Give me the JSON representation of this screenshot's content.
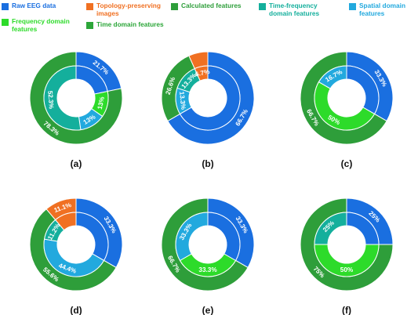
{
  "legend": [
    {
      "key": "raw",
      "label": "Raw EEG data",
      "color": "#1A6FE0"
    },
    {
      "key": "topo",
      "label": "Topology-preserving\nimages",
      "color": "#F07022"
    },
    {
      "key": "calc",
      "label": "Calculated features",
      "color": "#2E9E3A"
    },
    {
      "key": "tf",
      "label": "Time-frequency\ndomain features",
      "color": "#14AF9C"
    },
    {
      "key": "spatial",
      "label": "Spatial domain features",
      "color": "#22A9DE"
    },
    {
      "key": "freq",
      "label": "Frequency domain\nfeatures",
      "color": "#2DDB2A"
    },
    {
      "key": "time",
      "label": "Time domain features",
      "color": "#2CA639"
    }
  ],
  "chart_data": [
    {
      "type": "pie",
      "subtype": "nested-donut",
      "panel": "(a)",
      "outer": [
        {
          "category": "raw",
          "value": 21.7,
          "label": "21.7%"
        },
        {
          "category": "calc",
          "value": 78.3,
          "label": "78.3%"
        }
      ],
      "inner": [
        {
          "category": "raw",
          "value": 21.7,
          "label": ""
        },
        {
          "category": "freq",
          "value": 13.0,
          "label": "13%"
        },
        {
          "category": "spatial",
          "value": 13.0,
          "label": "13%"
        },
        {
          "category": "tf",
          "value": 52.3,
          "label": "52.3%"
        }
      ]
    },
    {
      "type": "pie",
      "subtype": "nested-donut",
      "panel": "(b)",
      "outer": [
        {
          "category": "raw",
          "value": 66.7,
          "label": "66.7%"
        },
        {
          "category": "calc",
          "value": 26.6,
          "label": "26.6%"
        },
        {
          "category": "topo",
          "value": 6.7,
          "label": ""
        }
      ],
      "inner": [
        {
          "category": "raw",
          "value": 66.7,
          "label": ""
        },
        {
          "category": "spatial",
          "value": 13.3,
          "label": "13.3%"
        },
        {
          "category": "tf",
          "value": 13.3,
          "label": "13.3%"
        },
        {
          "category": "topo",
          "value": 6.7,
          "label": "6.7%"
        }
      ]
    },
    {
      "type": "pie",
      "subtype": "nested-donut",
      "panel": "(c)",
      "outer": [
        {
          "category": "raw",
          "value": 33.3,
          "label": "33.3%"
        },
        {
          "category": "calc",
          "value": 66.7,
          "label": "66.7%"
        }
      ],
      "inner": [
        {
          "category": "raw",
          "value": 33.3,
          "label": ""
        },
        {
          "category": "freq",
          "value": 50.0,
          "label": "50%"
        },
        {
          "category": "spatial",
          "value": 16.7,
          "label": "16.7%"
        }
      ]
    },
    {
      "type": "pie",
      "subtype": "nested-donut",
      "panel": "(d)",
      "outer": [
        {
          "category": "raw",
          "value": 33.3,
          "label": "33.3%"
        },
        {
          "category": "calc",
          "value": 55.6,
          "label": "55.6%"
        },
        {
          "category": "topo",
          "value": 11.1,
          "label": "11.1%"
        }
      ],
      "inner": [
        {
          "category": "raw",
          "value": 33.3,
          "label": ""
        },
        {
          "category": "spatial",
          "value": 44.4,
          "label": "44.4%"
        },
        {
          "category": "tf",
          "value": 11.2,
          "label": "11.2%"
        },
        {
          "category": "topo",
          "value": 11.1,
          "label": ""
        }
      ]
    },
    {
      "type": "pie",
      "subtype": "nested-donut",
      "panel": "(e)",
      "outer": [
        {
          "category": "raw",
          "value": 33.3,
          "label": "33.3%"
        },
        {
          "category": "calc",
          "value": 66.7,
          "label": "66.7%"
        }
      ],
      "inner": [
        {
          "category": "raw",
          "value": 33.3,
          "label": ""
        },
        {
          "category": "freq",
          "value": 33.3,
          "label": "33.3%"
        },
        {
          "category": "spatial",
          "value": 33.3,
          "label": "33.3%"
        }
      ]
    },
    {
      "type": "pie",
      "subtype": "nested-donut",
      "panel": "(f)",
      "outer": [
        {
          "category": "raw",
          "value": 25.0,
          "label": "25%"
        },
        {
          "category": "calc",
          "value": 75.0,
          "label": "75%"
        }
      ],
      "inner": [
        {
          "category": "raw",
          "value": 25.0,
          "label": ""
        },
        {
          "category": "freq",
          "value": 50.0,
          "label": "50%"
        },
        {
          "category": "tf",
          "value": 25.0,
          "label": "25%"
        }
      ]
    }
  ]
}
